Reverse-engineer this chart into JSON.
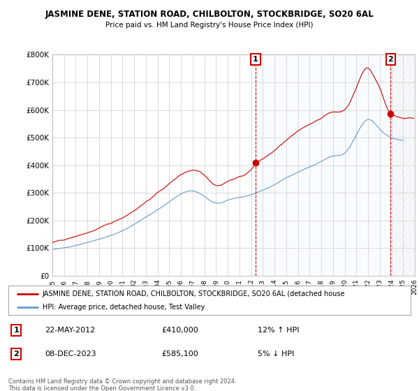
{
  "title": "JASMINE DENE, STATION ROAD, CHILBOLTON, STOCKBRIDGE, SO20 6AL",
  "subtitle": "Price paid vs. HM Land Registry's House Price Index (HPI)",
  "legend_line1": "JASMINE DENE, STATION ROAD, CHILBOLTON, STOCKBRIDGE, SO20 6AL (detached house",
  "legend_line2": "HPI: Average price, detached house, Test Valley",
  "annotation1_label": "1",
  "annotation1_date": "22-MAY-2012",
  "annotation1_price": "£410,000",
  "annotation1_hpi": "12% ↑ HPI",
  "annotation1_year": 2012.38,
  "annotation1_value": 410000,
  "annotation2_label": "2",
  "annotation2_date": "08-DEC-2023",
  "annotation2_price": "£585,100",
  "annotation2_hpi": "5% ↓ HPI",
  "annotation2_year": 2023.93,
  "annotation2_value": 585100,
  "ylim": [
    0,
    800000
  ],
  "xlim_start": 1995,
  "xlim_end": 2026,
  "yticks": [
    0,
    100000,
    200000,
    300000,
    400000,
    500000,
    600000,
    700000,
    800000
  ],
  "ytick_labels": [
    "£0",
    "£100K",
    "£200K",
    "£300K",
    "£400K",
    "£500K",
    "£600K",
    "£700K",
    "£800K"
  ],
  "xticks": [
    1995,
    1996,
    1997,
    1998,
    1999,
    2000,
    2001,
    2002,
    2003,
    2004,
    2005,
    2006,
    2007,
    2008,
    2009,
    2010,
    2011,
    2012,
    2013,
    2014,
    2015,
    2016,
    2017,
    2018,
    2019,
    2020,
    2021,
    2022,
    2023,
    2024,
    2025,
    2026
  ],
  "line_color_red": "#cc0000",
  "line_color_blue": "#6699cc",
  "background_color": "#ffffff",
  "grid_color": "#cccccc",
  "shade_color": "#ddeeff",
  "hatch_color": "#aabbcc",
  "footer_text": "Contains HM Land Registry data © Crown copyright and database right 2024.\nThis data is licensed under the Open Government Licence v3.0.",
  "annotation_box_color": "#cc0000"
}
